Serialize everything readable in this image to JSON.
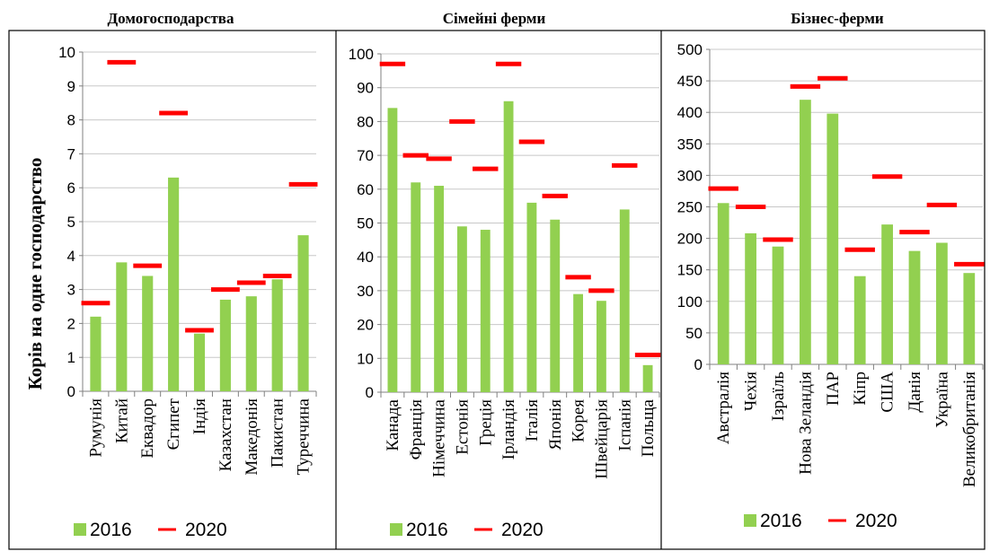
{
  "y_axis_label": "Корів на одне господарство",
  "chart_data": [
    {
      "type": "bar",
      "title": "Домогосподарства",
      "categories": [
        "Румунія",
        "Китай",
        "Еквадор",
        "Єгипет",
        "Індія",
        "Казахстан",
        "Македонія",
        "Пакистан",
        "Туреччина"
      ],
      "ylim": [
        0,
        10
      ],
      "yticks": [
        0,
        1,
        2,
        3,
        4,
        5,
        6,
        7,
        8,
        9,
        10
      ],
      "grid": true,
      "legend_position": "bottom",
      "series": [
        {
          "name": "2016",
          "kind": "bar",
          "color": "#92d050",
          "values": [
            2.2,
            3.8,
            3.4,
            6.3,
            1.7,
            2.7,
            2.8,
            3.3,
            4.6
          ]
        },
        {
          "name": "2020",
          "kind": "marker",
          "color": "#ff0000",
          "values": [
            2.6,
            9.7,
            3.7,
            8.2,
            1.8,
            3.0,
            3.2,
            3.4,
            6.1
          ]
        }
      ]
    },
    {
      "type": "bar",
      "title": "Сімейні ферми",
      "categories": [
        "Канада",
        "Франція",
        "Німеччина",
        "Естонія",
        "Греція",
        "Ірландія",
        "Італія",
        "Японія",
        "Корея",
        "Швейцарія",
        "Іспанія",
        "Польща"
      ],
      "ylim": [
        0,
        100
      ],
      "yticks": [
        0,
        10,
        20,
        30,
        40,
        50,
        60,
        70,
        80,
        90,
        100
      ],
      "grid": true,
      "legend_position": "bottom",
      "series": [
        {
          "name": "2016",
          "kind": "bar",
          "color": "#92d050",
          "values": [
            84,
            62,
            61,
            49,
            48,
            86,
            56,
            51,
            29,
            27,
            54,
            8
          ]
        },
        {
          "name": "2020",
          "kind": "marker",
          "color": "#ff0000",
          "values": [
            97,
            70,
            69,
            80,
            66,
            97,
            74,
            58,
            34,
            30,
            67,
            11
          ]
        }
      ]
    },
    {
      "type": "bar",
      "title": "Бізнес-ферми",
      "categories": [
        "Австралія",
        "Чехія",
        "Ізраїль",
        "Нова Зеландія",
        "ПАР",
        "Кіпр",
        "США",
        "Данія",
        "Україна",
        "Великобританія"
      ],
      "ylim": [
        0,
        500
      ],
      "yticks": [
        0,
        50,
        100,
        150,
        200,
        250,
        300,
        350,
        400,
        450,
        500
      ],
      "grid": true,
      "legend_position": "bottom",
      "series": [
        {
          "name": "2016",
          "kind": "bar",
          "color": "#92d050",
          "values": [
            256,
            208,
            187,
            420,
            398,
            140,
            222,
            180,
            193,
            145
          ]
        },
        {
          "name": "2020",
          "kind": "marker",
          "color": "#ff0000",
          "values": [
            279,
            250,
            198,
            441,
            454,
            182,
            298,
            210,
            253,
            159
          ]
        }
      ]
    }
  ]
}
